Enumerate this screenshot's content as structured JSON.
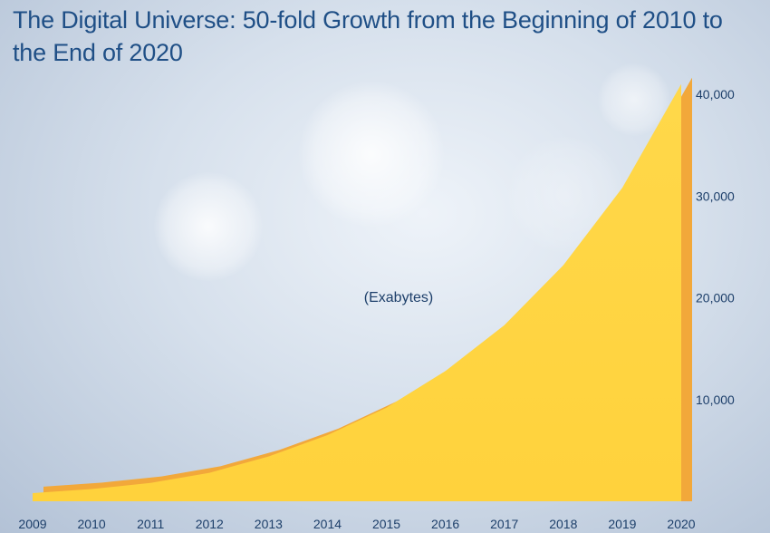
{
  "title": "The Digital Universe: 50-fold Growth from the Beginning of 2010 to the End of 2020",
  "chart_data": {
    "type": "area",
    "title": "The Digital Universe: 50-fold Growth from the Beginning of 2010 to the End of 2020",
    "unit_label": "(Exabytes)",
    "x": [
      2009,
      2010,
      2011,
      2012,
      2013,
      2014,
      2015,
      2016,
      2017,
      2018,
      2019,
      2020
    ],
    "x_tick_labels": [
      "2009",
      "2010",
      "2011",
      "2012",
      "2013",
      "2014",
      "2015",
      "2016",
      "2017",
      "2018",
      "2019",
      "2020"
    ],
    "series": [
      {
        "values": [
          800,
          1200,
          1800,
          2800,
          4400,
          6500,
          9200,
          12800,
          17300,
          23200,
          30800,
          41000
        ]
      }
    ],
    "y_ticks": [
      10000,
      20000,
      30000,
      40000
    ],
    "y_tick_labels": [
      "10,000",
      "20,000",
      "30,000",
      "40,000"
    ],
    "ylim": [
      0,
      45000
    ],
    "y_axis_side": "right",
    "fill_color": "#ffd23c",
    "edge_color": "#f2a83a",
    "grid": false
  }
}
